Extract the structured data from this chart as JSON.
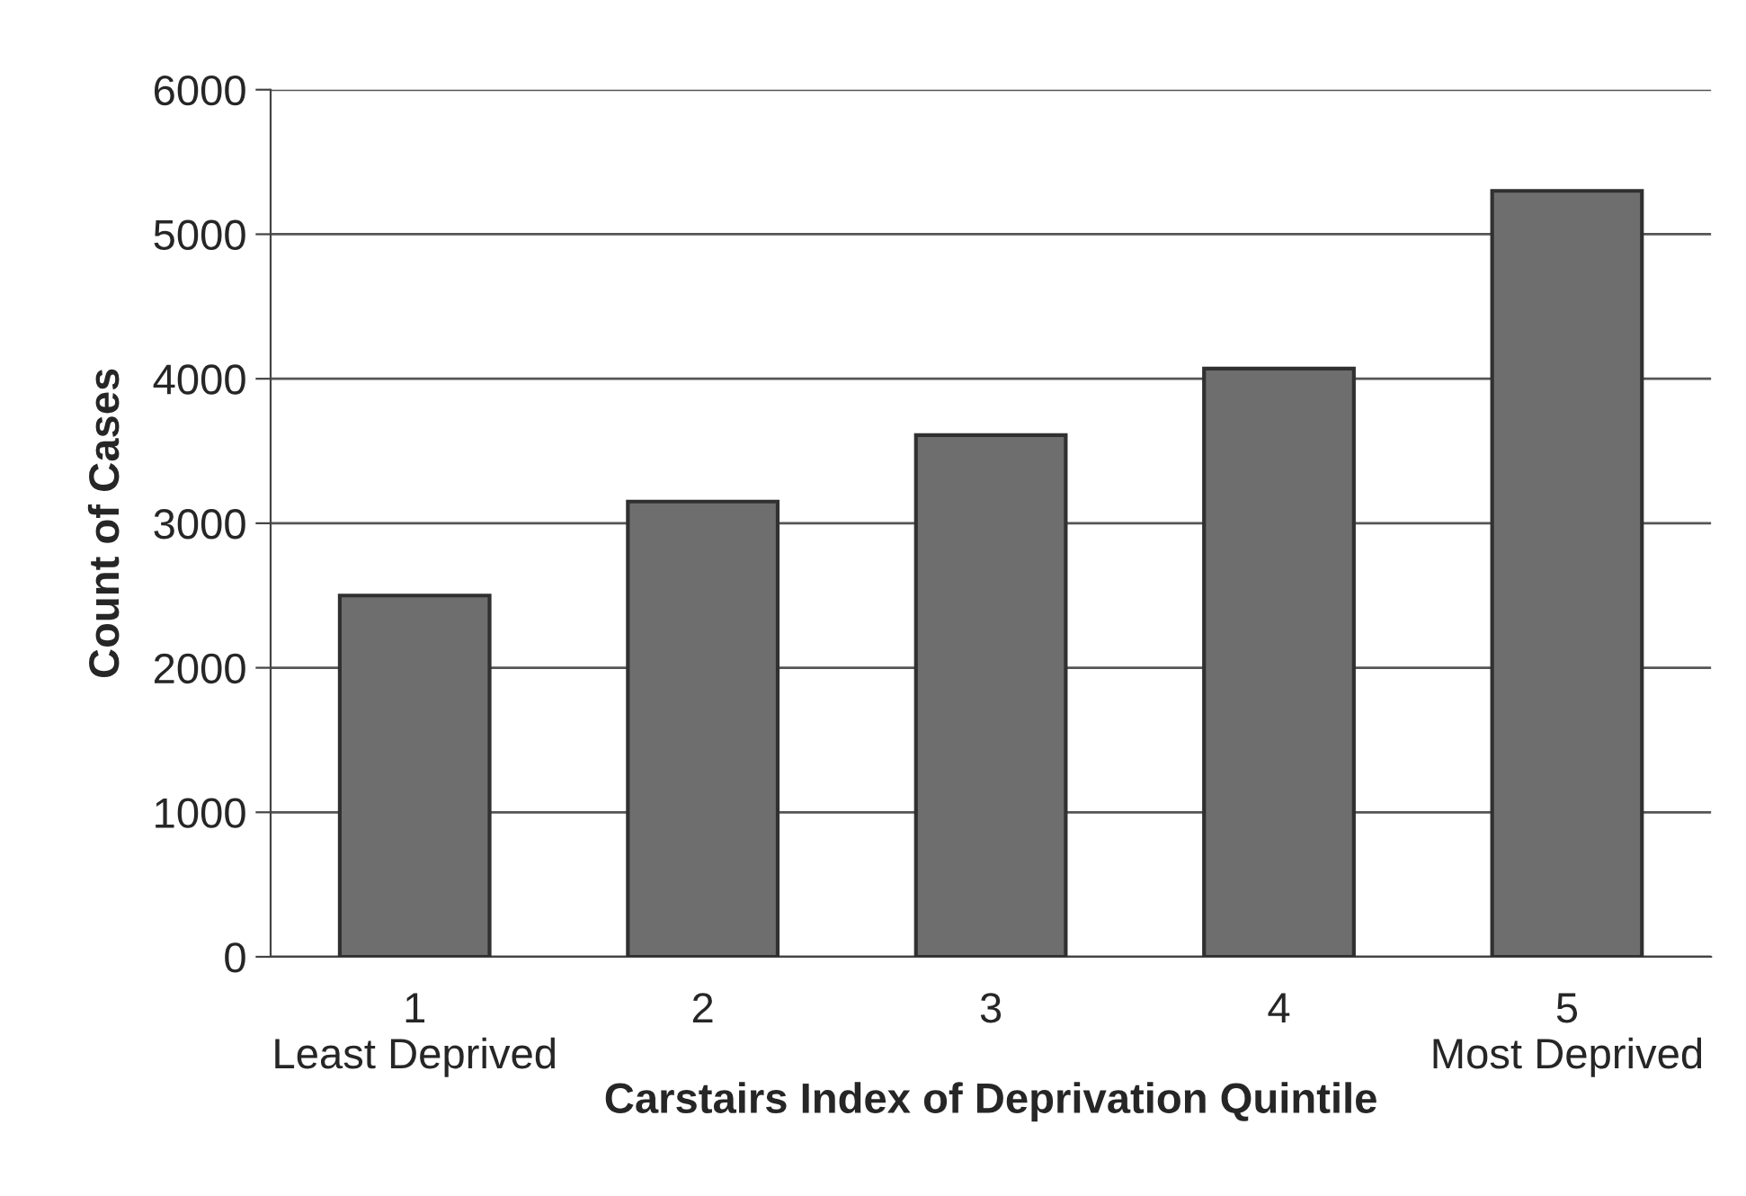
{
  "chart_data": {
    "type": "bar",
    "xlabel": "Carstairs Index of Deprivation Quintile",
    "ylabel": "Count of Cases",
    "categories": [
      "1\nLeast Deprived",
      "2",
      "3",
      "4",
      "5\nMost Deprived"
    ],
    "values": [
      2500,
      3150,
      3610,
      4070,
      5300
    ],
    "color": "#6e6e6e",
    "ylim": [
      0,
      6000
    ],
    "yticks": [
      0,
      1000,
      2000,
      3000,
      4000,
      5000,
      6000
    ],
    "grid": "y"
  }
}
